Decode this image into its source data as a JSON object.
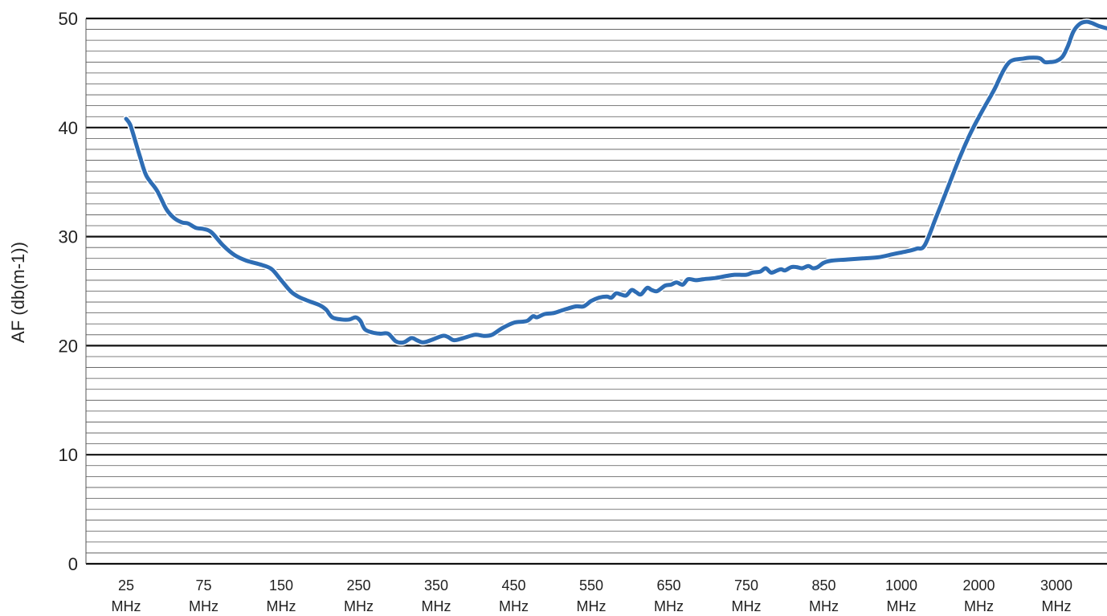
{
  "chart_data": {
    "type": "line",
    "title": "",
    "ylabel": "AF (db(m-1))",
    "xlabel": "",
    "ylim": [
      0,
      50
    ],
    "y_major_ticks": [
      0,
      10,
      20,
      30,
      40,
      50
    ],
    "y_minor_step": 1,
    "grid": true,
    "categories": [
      {
        "value": "25",
        "unit": "MHz"
      },
      {
        "value": "75",
        "unit": "MHz"
      },
      {
        "value": "150",
        "unit": "MHz"
      },
      {
        "value": "250",
        "unit": "MHz"
      },
      {
        "value": "350",
        "unit": "MHz"
      },
      {
        "value": "450",
        "unit": "MHz"
      },
      {
        "value": "550",
        "unit": "MHz"
      },
      {
        "value": "650",
        "unit": "MHz"
      },
      {
        "value": "750",
        "unit": "MHz"
      },
      {
        "value": "850",
        "unit": "MHz"
      },
      {
        "value": "1000",
        "unit": "MHz"
      },
      {
        "value": "2000",
        "unit": "MHz"
      },
      {
        "value": "3000",
        "unit": "MHz"
      }
    ],
    "series": [
      {
        "color": "#2e6db4",
        "points": [
          [
            0.0,
            40.8
          ],
          [
            0.05,
            40.3
          ],
          [
            0.1,
            39.2
          ],
          [
            0.18,
            37.3
          ],
          [
            0.26,
            35.6
          ],
          [
            0.4,
            34.2
          ],
          [
            0.52,
            32.5
          ],
          [
            0.62,
            31.7
          ],
          [
            0.72,
            31.3
          ],
          [
            0.8,
            31.2
          ],
          [
            0.9,
            30.8
          ],
          [
            1.0,
            30.7
          ],
          [
            1.1,
            30.4
          ],
          [
            1.25,
            29.2
          ],
          [
            1.4,
            28.3
          ],
          [
            1.55,
            27.8
          ],
          [
            1.75,
            27.4
          ],
          [
            1.88,
            27.0
          ],
          [
            2.0,
            26.0
          ],
          [
            2.12,
            25.0
          ],
          [
            2.22,
            24.5
          ],
          [
            2.35,
            24.1
          ],
          [
            2.5,
            23.7
          ],
          [
            2.58,
            23.3
          ],
          [
            2.66,
            22.6
          ],
          [
            2.78,
            22.4
          ],
          [
            2.88,
            22.4
          ],
          [
            2.96,
            22.6
          ],
          [
            3.02,
            22.3
          ],
          [
            3.08,
            21.5
          ],
          [
            3.18,
            21.2
          ],
          [
            3.28,
            21.1
          ],
          [
            3.38,
            21.1
          ],
          [
            3.48,
            20.4
          ],
          [
            3.58,
            20.3
          ],
          [
            3.68,
            20.7
          ],
          [
            3.75,
            20.5
          ],
          [
            3.83,
            20.3
          ],
          [
            3.93,
            20.5
          ],
          [
            4.08,
            20.9
          ],
          [
            4.15,
            20.8
          ],
          [
            4.23,
            20.5
          ],
          [
            4.35,
            20.7
          ],
          [
            4.5,
            21.0
          ],
          [
            4.62,
            20.9
          ],
          [
            4.72,
            21.0
          ],
          [
            4.85,
            21.6
          ],
          [
            5.0,
            22.1
          ],
          [
            5.12,
            22.2
          ],
          [
            5.18,
            22.3
          ],
          [
            5.25,
            22.7
          ],
          [
            5.3,
            22.6
          ],
          [
            5.4,
            22.9
          ],
          [
            5.52,
            23.0
          ],
          [
            5.65,
            23.3
          ],
          [
            5.8,
            23.6
          ],
          [
            5.9,
            23.6
          ],
          [
            6.0,
            24.1
          ],
          [
            6.1,
            24.4
          ],
          [
            6.2,
            24.5
          ],
          [
            6.26,
            24.4
          ],
          [
            6.32,
            24.8
          ],
          [
            6.38,
            24.7
          ],
          [
            6.45,
            24.6
          ],
          [
            6.52,
            25.1
          ],
          [
            6.58,
            24.9
          ],
          [
            6.64,
            24.7
          ],
          [
            6.72,
            25.3
          ],
          [
            6.78,
            25.1
          ],
          [
            6.85,
            25.0
          ],
          [
            6.95,
            25.5
          ],
          [
            7.03,
            25.6
          ],
          [
            7.1,
            25.8
          ],
          [
            7.18,
            25.6
          ],
          [
            7.25,
            26.1
          ],
          [
            7.35,
            26.0
          ],
          [
            7.45,
            26.1
          ],
          [
            7.6,
            26.2
          ],
          [
            7.75,
            26.4
          ],
          [
            7.85,
            26.5
          ],
          [
            8.0,
            26.5
          ],
          [
            8.08,
            26.7
          ],
          [
            8.18,
            26.8
          ],
          [
            8.25,
            27.1
          ],
          [
            8.32,
            26.7
          ],
          [
            8.4,
            26.9
          ],
          [
            8.45,
            27.0
          ],
          [
            8.5,
            26.9
          ],
          [
            8.58,
            27.2
          ],
          [
            8.65,
            27.2
          ],
          [
            8.72,
            27.1
          ],
          [
            8.8,
            27.3
          ],
          [
            8.86,
            27.1
          ],
          [
            8.92,
            27.2
          ],
          [
            9.0,
            27.6
          ],
          [
            9.1,
            27.8
          ],
          [
            9.3,
            27.9
          ],
          [
            9.5,
            28.0
          ],
          [
            9.7,
            28.1
          ],
          [
            9.9,
            28.4
          ],
          [
            10.1,
            28.7
          ],
          [
            10.2,
            28.9
          ],
          [
            10.3,
            29.2
          ],
          [
            10.45,
            31.8
          ],
          [
            10.6,
            34.5
          ],
          [
            10.75,
            37.2
          ],
          [
            10.9,
            39.6
          ],
          [
            11.05,
            41.6
          ],
          [
            11.2,
            43.5
          ],
          [
            11.3,
            45.0
          ],
          [
            11.38,
            45.9
          ],
          [
            11.45,
            46.2
          ],
          [
            11.55,
            46.3
          ],
          [
            11.65,
            46.4
          ],
          [
            11.75,
            46.4
          ],
          [
            11.8,
            46.3
          ],
          [
            11.85,
            46.0
          ],
          [
            11.92,
            46.0
          ],
          [
            12.0,
            46.1
          ],
          [
            12.08,
            46.5
          ],
          [
            12.15,
            47.5
          ],
          [
            12.22,
            48.8
          ],
          [
            12.3,
            49.5
          ],
          [
            12.38,
            49.7
          ],
          [
            12.45,
            49.6
          ],
          [
            12.55,
            49.3
          ],
          [
            12.65,
            49.1
          ]
        ]
      }
    ]
  }
}
